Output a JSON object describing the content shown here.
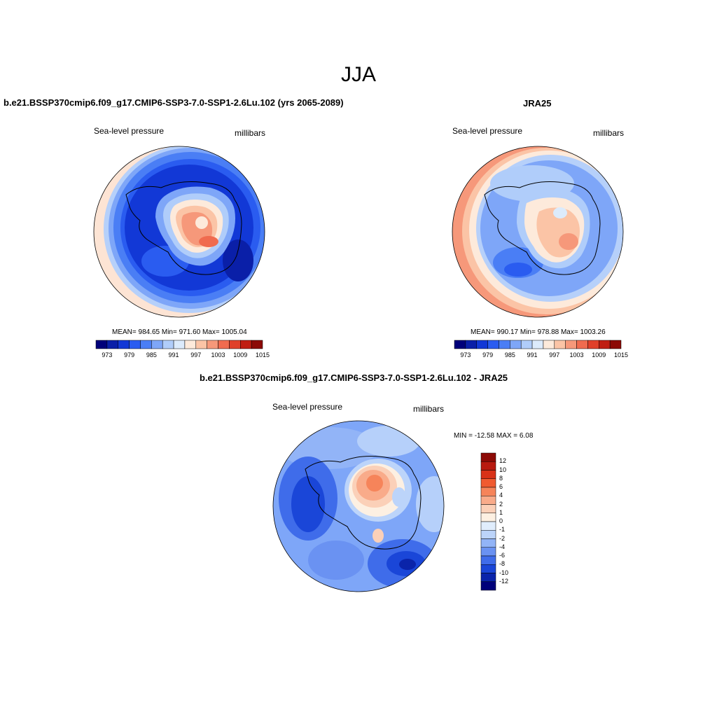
{
  "title": "JJA",
  "panels": {
    "model": {
      "title": "b.e21.BSSP370cmip6.f09_g17.CMIP6-SSP3-7.0-SSP1-2.6Lu.102 (yrs 2065-2089)",
      "left_label": "Sea-level pressure",
      "right_label": "millibars",
      "stats": "MEAN= 984.65   Min= 971.60   Max= 1005.04"
    },
    "obs": {
      "title": "JRA25",
      "left_label": "Sea-level pressure",
      "right_label": "millibars",
      "stats": "MEAN= 990.17   Min= 978.88   Max= 1003.26"
    },
    "diff": {
      "title": "b.e21.BSSP370cmip6.f09_g17.CMIP6-SSP3-7.0-SSP1-2.6Lu.102 - JRA25",
      "left_label": "Sea-level pressure",
      "right_label": "millibars",
      "stats": "MIN = -12.58 MAX =   6.08"
    }
  },
  "horizontal_colorbar": {
    "colors": [
      "#00007a",
      "#0a1fa8",
      "#1238d6",
      "#2a5cf0",
      "#4a7ef5",
      "#7ea6f8",
      "#b0cdfa",
      "#dcebfc",
      "#fdeadb",
      "#fbc4a6",
      "#f6987a",
      "#f06b4f",
      "#e0402a",
      "#c01e12",
      "#8c0a06"
    ],
    "tick_labels": [
      "973",
      "979",
      "985",
      "991",
      "997",
      "1003",
      "1009",
      "1015"
    ]
  },
  "vertical_colorbar": {
    "colors": [
      "#8c0a06",
      "#b81a10",
      "#d93218",
      "#f05a30",
      "#f6845a",
      "#f9ab8a",
      "#fbd0b8",
      "#fdf0e2",
      "#e0edfc",
      "#bcd4fa",
      "#92b4f7",
      "#6a92f2",
      "#3f6cea",
      "#1a46d8",
      "#0a24aa",
      "#00007a"
    ],
    "tick_labels": [
      "12",
      "10",
      "8",
      "6",
      "4",
      "2",
      "1",
      "0",
      "-1",
      "-2",
      "-4",
      "-6",
      "-8",
      "-10",
      "-12"
    ]
  }
}
